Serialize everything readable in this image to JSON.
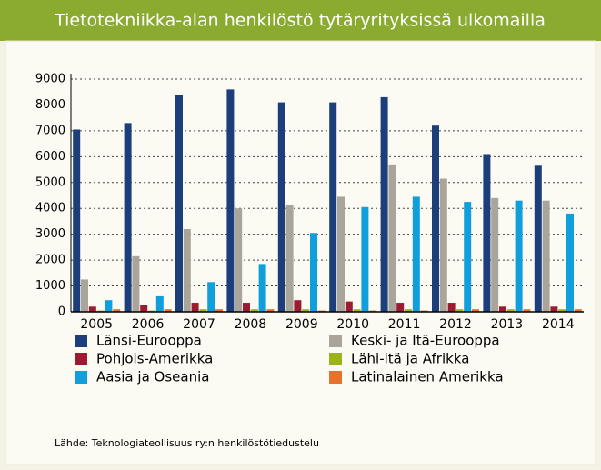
{
  "chart_data": {
    "type": "bar",
    "title": "Tietotekniikka-alan henkilöstö tytäryrityksissä ulkomailla",
    "categories": [
      "2005",
      "2006",
      "2007",
      "2008",
      "2009",
      "2010",
      "2011",
      "2012",
      "2013",
      "2014"
    ],
    "series": [
      {
        "name": "Länsi-Eurooppa",
        "color": "#1c3f7c",
        "values": [
          7050,
          7300,
          8400,
          8600,
          8100,
          8100,
          8300,
          7200,
          6100,
          5650
        ]
      },
      {
        "name": "Keski- ja Itä-Eurooppa",
        "color": "#aaa59b",
        "values": [
          1250,
          2150,
          3200,
          4000,
          4150,
          4450,
          5700,
          5150,
          4400,
          4300
        ]
      },
      {
        "name": "Pohjois-Amerikka",
        "color": "#9c1b32",
        "values": [
          200,
          250,
          350,
          350,
          450,
          400,
          350,
          350,
          200,
          200
        ]
      },
      {
        "name": "Lähi-itä ja Afrikka",
        "color": "#9cb41c",
        "values": [
          50,
          50,
          100,
          100,
          100,
          100,
          100,
          100,
          100,
          100
        ]
      },
      {
        "name": "Aasia ja Oseania",
        "color": "#0fa0dc",
        "values": [
          450,
          600,
          1150,
          1850,
          3050,
          4050,
          4450,
          4250,
          4300,
          3800
        ]
      },
      {
        "name": "Latinalainen Amerikka",
        "color": "#e8712b",
        "values": [
          100,
          100,
          100,
          100,
          50,
          50,
          50,
          100,
          100,
          100
        ]
      }
    ],
    "ylim": [
      0,
      9000
    ],
    "yticks": [
      0,
      1000,
      2000,
      3000,
      4000,
      5000,
      6000,
      7000,
      8000,
      9000
    ],
    "grid": true,
    "source": "Lähde: Teknologiateollisuus ry:n henkilöstötiedustelu"
  }
}
